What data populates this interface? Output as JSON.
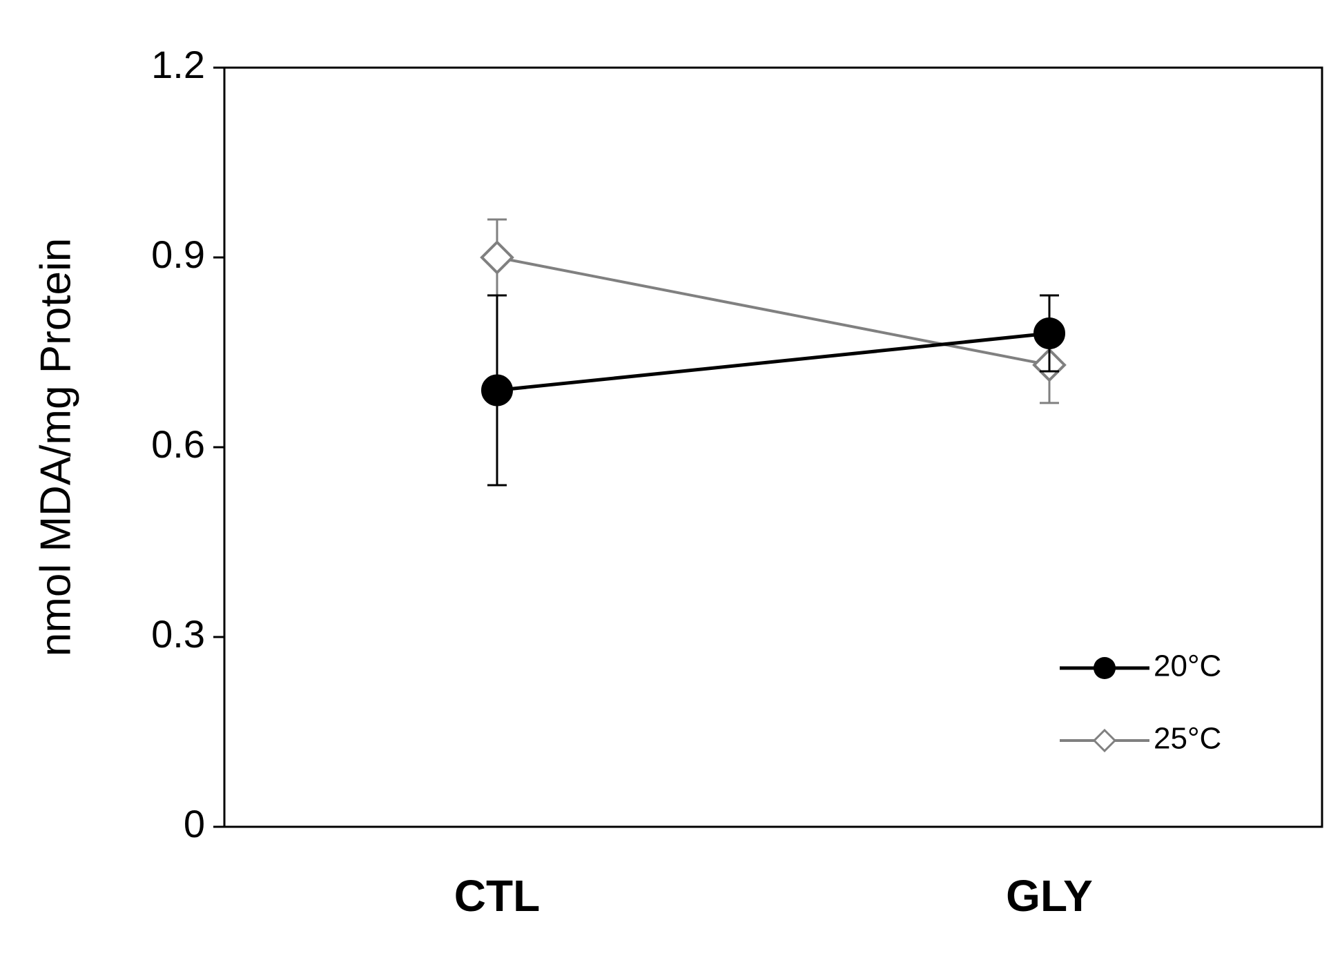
{
  "chart_data": {
    "type": "line",
    "title": "",
    "xlabel": "",
    "ylabel": "nmol MDA/mg Protein",
    "categories": [
      "CTL",
      "GLY"
    ],
    "ylim": [
      0,
      1.2
    ],
    "yticks": [
      "0",
      "0.3",
      "0.6",
      "0.9",
      "1.2"
    ],
    "ytick_values": [
      0,
      0.3,
      0.6,
      0.9,
      1.2
    ],
    "grid": false,
    "legend_position": "bottom-right",
    "series": [
      {
        "name": "20°C",
        "values": [
          0.69,
          0.78
        ],
        "error_low": [
          0.54,
          0.72
        ],
        "error_high": [
          0.84,
          0.84
        ],
        "color": "#000000",
        "marker": "filled-circle"
      },
      {
        "name": "25°C",
        "values": [
          0.9,
          0.73
        ],
        "error_low": [
          0.84,
          0.67
        ],
        "error_high": [
          0.96,
          0.78
        ],
        "color": "#808080",
        "marker": "open-diamond"
      }
    ]
  }
}
